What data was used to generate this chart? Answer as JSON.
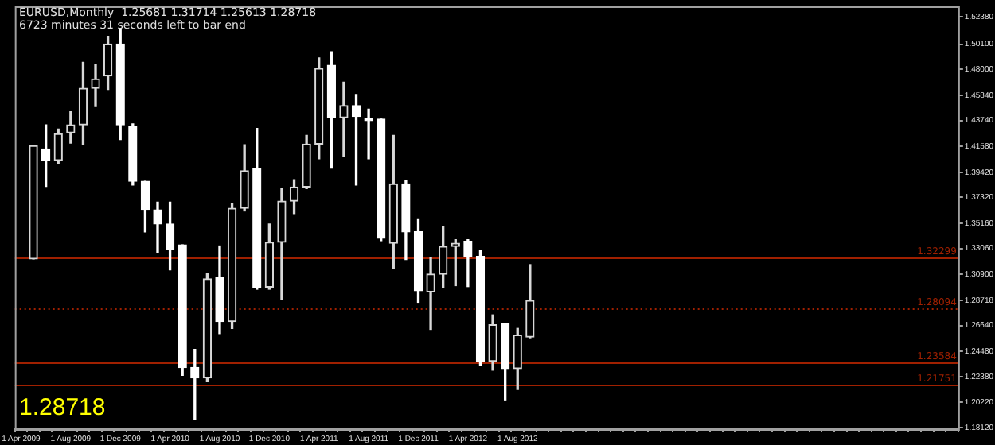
{
  "chart_data": {
    "type": "candlestick",
    "title": "EURUSD,Monthly  1.25681 1.31714 1.25613 1.28718",
    "subtitle": "6723 minutes 31 seconds left to bar end",
    "annotations": [
      "1.28718"
    ],
    "categories": [
      "1 Apr 2009",
      null,
      null,
      null,
      "1 Aug 2009",
      null,
      null,
      null,
      "1 Dec 2009",
      null,
      null,
      null,
      "1 Apr 2010",
      null,
      null,
      null,
      "1 Aug 2010",
      null,
      null,
      null,
      "1 Dec 2010",
      null,
      null,
      null,
      "1 Apr 2011",
      null,
      null,
      null,
      "1 Aug 2011",
      null,
      null,
      null,
      "1 Dec 2011",
      null,
      null,
      null,
      "1 Apr 2012",
      null,
      null,
      null,
      "1 Aug 2012",
      null,
      null,
      null,
      null,
      null,
      null,
      null,
      null,
      null,
      null,
      null,
      null,
      null,
      null,
      null,
      null,
      null,
      null,
      null,
      null,
      null,
      null,
      null,
      null,
      null,
      null,
      null,
      null,
      null,
      null,
      null,
      null,
      null,
      null,
      null
    ],
    "ohlc": [
      null,
      [
        1.3218,
        1.4163,
        1.3218,
        1.4163
      ],
      [
        1.4137,
        1.4337,
        1.3823,
        1.4041
      ],
      [
        1.4041,
        1.4302,
        1.4011,
        1.4263
      ],
      [
        1.4272,
        1.4446,
        1.4185,
        1.4337
      ],
      [
        1.4337,
        1.486,
        1.4172,
        1.4642
      ],
      [
        1.4642,
        1.4838,
        1.449,
        1.472
      ],
      [
        1.4746,
        1.5077,
        1.4633,
        1.5012
      ],
      [
        1.5012,
        1.5143,
        1.4215,
        1.4337
      ],
      [
        1.4328,
        1.4346,
        1.3836,
        1.3867
      ],
      [
        1.3867,
        1.3867,
        1.3445,
        1.3632
      ],
      [
        1.3628,
        1.3693,
        1.3271,
        1.351
      ],
      [
        1.351,
        1.3693,
        1.3127,
        1.3301
      ],
      [
        1.3336,
        1.3336,
        1.2247,
        1.2313
      ],
      [
        1.2313,
        1.2465,
        1.1877,
        1.2226
      ],
      [
        1.2226,
        1.3096,
        1.2195,
        1.3053
      ],
      [
        1.3066,
        1.3327,
        1.2596,
        1.2696
      ],
      [
        1.2696,
        1.3684,
        1.2639,
        1.3641
      ],
      [
        1.3641,
        1.4172,
        1.3619,
        1.3954
      ],
      [
        1.3976,
        1.4307,
        1.2966,
        1.2983
      ],
      [
        1.2983,
        1.351,
        1.2966,
        1.3358
      ],
      [
        1.3358,
        1.3806,
        1.2879,
        1.3701
      ],
      [
        1.3701,
        1.388,
        1.3597,
        1.3819
      ],
      [
        1.3819,
        1.425,
        1.3806,
        1.4176
      ],
      [
        1.4176,
        1.4895,
        1.4054,
        1.4807
      ],
      [
        1.4834,
        1.4947,
        1.3976,
        1.4398
      ],
      [
        1.4398,
        1.4694,
        1.4076,
        1.4498
      ],
      [
        1.4498,
        1.459,
        1.3836,
        1.4407
      ],
      [
        1.4389,
        1.4468,
        1.4054,
        1.4372
      ],
      [
        1.4385,
        1.4385,
        1.3371,
        1.3392
      ],
      [
        1.3349,
        1.425,
        1.314,
        1.3845
      ],
      [
        1.3845,
        1.3871,
        1.3214,
        1.3445
      ],
      [
        1.3445,
        1.3553,
        1.2857,
        1.2953
      ],
      [
        1.2944,
        1.3227,
        1.2631,
        1.3092
      ],
      [
        1.3092,
        1.3488,
        1.2979,
        1.3323
      ],
      [
        1.3323,
        1.3379,
        1.2996,
        1.3349
      ],
      [
        1.3366,
        1.3379,
        1.2988,
        1.324
      ],
      [
        1.324,
        1.3292,
        1.2334,
        1.2365
      ],
      [
        1.2365,
        1.2752,
        1.2291,
        1.267
      ],
      [
        1.2678,
        1.2678,
        1.2043,
        1.2304
      ],
      [
        1.2304,
        1.2639,
        1.213,
        1.2583
      ],
      [
        1.25681,
        1.31714,
        1.25613,
        1.28718
      ],
      null,
      null,
      null,
      null,
      null,
      null,
      null,
      null,
      null,
      null,
      null,
      null,
      null,
      null,
      null,
      null,
      null,
      null,
      null,
      null,
      null,
      null,
      null,
      null,
      null,
      null,
      null,
      null,
      null,
      null,
      null,
      null,
      null,
      null
    ],
    "ylim": [
      1.1799,
      1.5326
    ],
    "yticks": [
      {
        "value": 1.5238,
        "label": "1.52380"
      },
      {
        "value": 1.501,
        "label": "1.50100"
      },
      {
        "value": 1.48,
        "label": "1.48000"
      },
      {
        "value": 1.4584,
        "label": "1.45840"
      },
      {
        "value": 1.4374,
        "label": "1.43740"
      },
      {
        "value": 1.4158,
        "label": "1.41580"
      },
      {
        "value": 1.3942,
        "label": "1.39420"
      },
      {
        "value": 1.3732,
        "label": "1.37320"
      },
      {
        "value": 1.3516,
        "label": "1.35160"
      },
      {
        "value": 1.3306,
        "label": "1.33060"
      },
      {
        "value": 1.309,
        "label": "1.30900"
      },
      {
        "value": 1.28718,
        "label": "1.28718"
      },
      {
        "value": 1.2664,
        "label": "1.26640"
      },
      {
        "value": 1.2448,
        "label": "1.24480"
      },
      {
        "value": 1.2238,
        "label": "1.22380"
      },
      {
        "value": 1.2022,
        "label": "1.20220"
      },
      {
        "value": 1.1812,
        "label": "1.18120"
      }
    ],
    "ref_lines": [
      {
        "axis": "y",
        "value": 1.32299,
        "label": "1.32299",
        "color": "#a02000"
      },
      {
        "axis": "y",
        "value": 1.28094,
        "label": "1.28094",
        "color": "#a02000",
        "line_style": "dotted"
      },
      {
        "axis": "y",
        "value": 1.23584,
        "label": "1.23584",
        "color": "#a02000"
      },
      {
        "axis": "y",
        "value": 1.21751,
        "label": "1.21751",
        "color": "#a02000"
      }
    ],
    "grid": false,
    "legend": false
  }
}
